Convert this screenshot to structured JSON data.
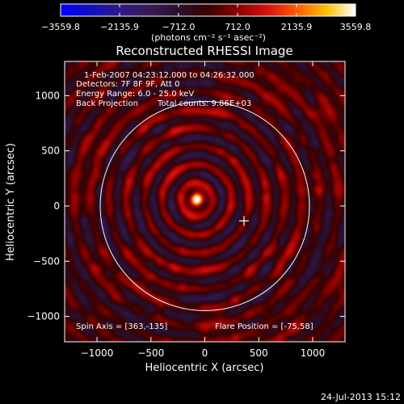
{
  "chart_data": {
    "type": "heatmap",
    "title": "Reconstructed RHESSI Image",
    "xlabel": "Heliocentric X (arcsec)",
    "ylabel": "Heliocentric Y (arcsec)",
    "xlim": [
      -1300,
      1300
    ],
    "ylim": [
      -1230,
      1310
    ],
    "x_ticks": [
      -1000,
      -500,
      0,
      500,
      1000
    ],
    "y_ticks": [
      -1000,
      -500,
      0,
      500,
      1000
    ],
    "x_tick_labels": [
      "−1000",
      "−500",
      "0",
      "500",
      "1000"
    ],
    "y_tick_labels": [
      "−1000",
      "−500",
      "0",
      "500",
      "1000"
    ],
    "colorbar": {
      "label": "(photons cm⁻² s⁻¹ asec⁻²)",
      "range": [
        -3559.8,
        3559.8
      ],
      "tick_values": [
        -3559.8,
        -2135.9,
        -712.0,
        712.0,
        2135.9,
        3559.8
      ],
      "tick_labels": [
        "−3559.8",
        "−2135.9",
        "−712.0",
        "712.0",
        "2135.9",
        "3559.8"
      ],
      "stops": [
        "#0000ff",
        "#1010c0",
        "#301888",
        "#3a1a55",
        "#281030",
        "#3a0000",
        "#8a0000",
        "#d81010",
        "#ff5a00",
        "#ffc000",
        "#ffffff"
      ]
    },
    "solar_disk": {
      "center": [
        0,
        0
      ],
      "radius": 970
    },
    "flare_source": {
      "x": -75,
      "y": 58,
      "peak": 3559.8
    },
    "spin_axis_marker": {
      "x": 363,
      "y": -135
    },
    "annotations": {
      "time_range": "1-Feb-2007 04:23:12.000 to 04:26:32.000",
      "detectors": "Detectors: 7F 8F 9F, Att 0",
      "energy": "Energy Range: 6.0 - 25.0 keV",
      "method": "Back Projection",
      "counts": "Total counts: 9.86E+03",
      "spin_axis": "Spin Axis = [363,-135]",
      "flare_position": "Flare Position = [-75,58]"
    },
    "footer_date": "24-Jul-2013 15:12"
  }
}
